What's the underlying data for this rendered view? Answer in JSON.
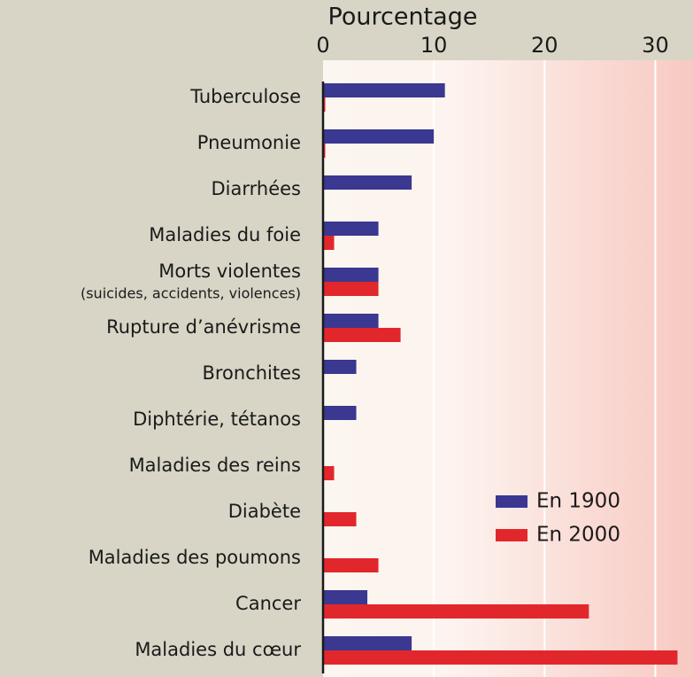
{
  "chart_data": {
    "type": "barh",
    "x_label": "Pourcentage",
    "categories": [
      "Tuberculose",
      "Pneumonie",
      "Diarrhées",
      "Maladies du foie",
      "Morts violentes",
      "Rupture d’anévrisme",
      "Bronchites",
      "Diphtérie, tétanos",
      "Maladies des reins",
      "Diabète",
      "Maladies des poumons",
      "Cancer",
      "Maladies du cœur"
    ],
    "category_note": "(suicides, accidents, violences)",
    "series": [
      {
        "name": "En 1900",
        "color": "#3a3890",
        "values": [
          11,
          10,
          8,
          5,
          5,
          5,
          3,
          3,
          0,
          0,
          0,
          4,
          8
        ]
      },
      {
        "name": "En 2000",
        "color": "#e2272c",
        "values": [
          0.2,
          0.2,
          0,
          1,
          5,
          7,
          0,
          0,
          1,
          3,
          5,
          24,
          32
        ]
      }
    ],
    "xlim": [
      0,
      33.4
    ],
    "xticks": [
      0,
      10,
      20,
      30
    ],
    "grid": true,
    "legend": "lower right"
  }
}
